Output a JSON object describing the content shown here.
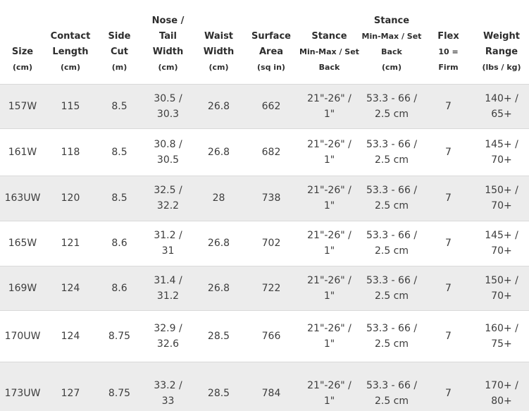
{
  "colors": {
    "row_stripe": "#ececec",
    "row_border": "#d9d9d9",
    "header_text": "#2d2d2d",
    "cell_text": "#3d3d3d",
    "background": "#ffffff"
  },
  "table": {
    "column_ids": [
      "size",
      "contact-length",
      "side-cut",
      "nose-tail-width",
      "waist-width",
      "surface-area",
      "stance-in",
      "stance-cm",
      "flex",
      "weight-range"
    ],
    "columns": [
      {
        "lines": [
          {
            "t": "Size",
            "s": "lg"
          },
          {
            "t": "(cm)",
            "s": "sm"
          }
        ]
      },
      {
        "lines": [
          {
            "t": "Contact",
            "s": "lg"
          },
          {
            "t": "Length",
            "s": "lg"
          },
          {
            "t": "(cm)",
            "s": "sm"
          }
        ]
      },
      {
        "lines": [
          {
            "t": "Side",
            "s": "lg"
          },
          {
            "t": "Cut",
            "s": "lg"
          },
          {
            "t": "(m)",
            "s": "sm"
          }
        ]
      },
      {
        "lines": [
          {
            "t": "Nose /",
            "s": "lg"
          },
          {
            "t": "Tail",
            "s": "lg"
          },
          {
            "t": "Width",
            "s": "lg"
          },
          {
            "t": "(cm)",
            "s": "sm"
          }
        ]
      },
      {
        "lines": [
          {
            "t": "Waist",
            "s": "lg"
          },
          {
            "t": "Width",
            "s": "lg"
          },
          {
            "t": "(cm)",
            "s": "sm"
          }
        ]
      },
      {
        "lines": [
          {
            "t": "Surface",
            "s": "lg"
          },
          {
            "t": "Area",
            "s": "lg"
          },
          {
            "t": "(sq in)",
            "s": "sm"
          }
        ]
      },
      {
        "lines": [
          {
            "t": "Stance",
            "s": "lg"
          },
          {
            "t": "Min-Max / Set",
            "s": "sm"
          },
          {
            "t": "Back",
            "s": "sm"
          }
        ]
      },
      {
        "lines": [
          {
            "t": "Stance",
            "s": "lg"
          },
          {
            "t": "Min-Max / Set",
            "s": "sm"
          },
          {
            "t": "Back",
            "s": "sm"
          },
          {
            "t": "(cm)",
            "s": "sm"
          }
        ]
      },
      {
        "lines": [
          {
            "t": "Flex",
            "s": "lg"
          },
          {
            "t": "10 =",
            "s": "sm"
          },
          {
            "t": "Firm",
            "s": "sm"
          }
        ]
      },
      {
        "lines": [
          {
            "t": "Weight",
            "s": "lg"
          },
          {
            "t": "Range",
            "s": "lg"
          },
          {
            "t": "(lbs / kg)",
            "s": "sm"
          }
        ]
      }
    ],
    "rows": [
      {
        "cells": [
          "157W",
          "115",
          "8.5",
          "30.5 /\n30.3",
          "26.8",
          "662",
          "21\"-26\" /\n1\"",
          "53.3 - 66 /\n2.5 cm",
          "7",
          "140+ /\n65+"
        ]
      },
      {
        "cells": [
          "161W",
          "118",
          "8.5",
          "30.8 /\n30.5",
          "26.8",
          "682",
          "21\"-26\" /\n1\"",
          "53.3 - 66 /\n2.5 cm",
          "7",
          "145+ /\n70+"
        ]
      },
      {
        "cells": [
          "163UW",
          "120",
          "8.5",
          "32.5 /\n32.2",
          "28",
          "738",
          "21\"-26\" /\n1\"",
          "53.3 - 66 /\n2.5 cm",
          "7",
          "150+ /\n70+"
        ]
      },
      {
        "cells": [
          "165W",
          "121",
          "8.6",
          "31.2 /\n31",
          "26.8",
          "702",
          "21\"-26\" /\n1\"",
          "53.3 - 66 /\n2.5 cm",
          "7",
          "145+ /\n70+"
        ]
      },
      {
        "cells": [
          "169W",
          "124",
          "8.6",
          "31.4 /\n31.2",
          "26.8",
          "722",
          "21\"-26\" /\n1\"",
          "53.3 - 66 /\n2.5 cm",
          "7",
          "150+ /\n70+"
        ]
      },
      {
        "cells": [
          "170UW",
          "124",
          "8.75",
          "32.9 /\n32.6",
          "28.5",
          "766",
          "21\"-26\" /\n1\"",
          "53.3 - 66 /\n2.5 cm",
          "7",
          "160+ /\n75+"
        ]
      },
      {
        "cells": [
          "173UW",
          "127",
          "8.75",
          "33.2 /\n33",
          "28.5",
          "784",
          "21\"-26\" /\n1\"",
          "53.3 - 66 /\n2.5 cm",
          "7",
          "170+ /\n80+"
        ]
      }
    ]
  }
}
